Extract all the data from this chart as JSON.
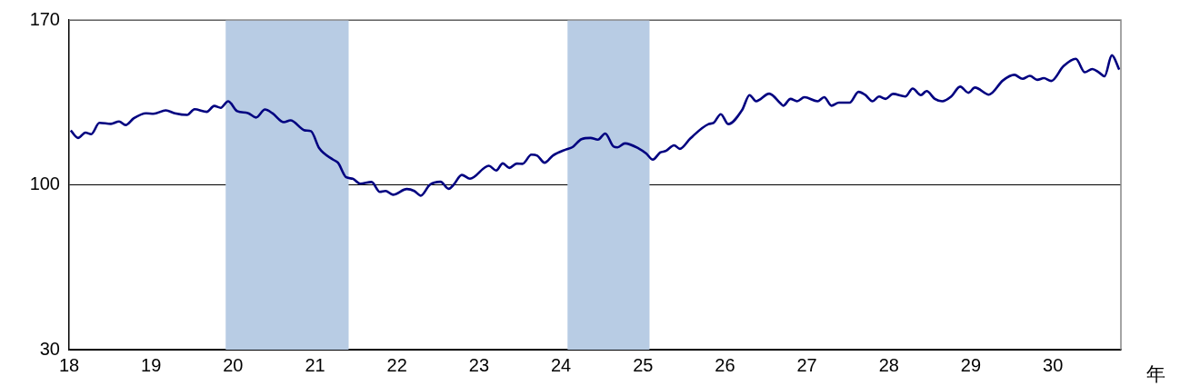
{
  "chart_data": {
    "type": "line",
    "xlabel": "年",
    "x": [
      18.02,
      18.11,
      18.2,
      18.27,
      18.37,
      18.51,
      18.61,
      18.69,
      18.79,
      18.94,
      19.03,
      19.18,
      19.29,
      19.44,
      19.53,
      19.68,
      19.77,
      19.85,
      19.94,
      20.05,
      20.18,
      20.28,
      20.39,
      20.48,
      20.62,
      20.7,
      20.88,
      20.95,
      21.05,
      21.22,
      21.28,
      21.38,
      21.46,
      21.55,
      21.69,
      21.79,
      21.86,
      21.95,
      22.12,
      22.21,
      22.29,
      22.4,
      22.53,
      22.63,
      22.69,
      22.79,
      22.89,
      23.12,
      23.21,
      23.29,
      23.37,
      23.46,
      23.53,
      23.64,
      23.71,
      23.8,
      23.9,
      24.06,
      24.14,
      24.25,
      24.36,
      24.45,
      24.54,
      24.64,
      24.69,
      24.78,
      24.95,
      25.04,
      25.12,
      25.21,
      25.28,
      25.38,
      25.45,
      25.58,
      25.8,
      25.86,
      25.95,
      26.04,
      26.21,
      26.3,
      26.38,
      26.54,
      26.68,
      26.71,
      26.8,
      26.88,
      26.97,
      27.13,
      27.21,
      27.3,
      27.39,
      27.52,
      27.63,
      27.71,
      27.8,
      27.88,
      27.96,
      28.05,
      28.2,
      28.29,
      28.39,
      28.46,
      28.56,
      28.65,
      28.76,
      28.87,
      28.97,
      29.05,
      29.22,
      29.39,
      29.53,
      29.63,
      29.72,
      29.81,
      29.89,
      29.98,
      30.13,
      30.28,
      30.39,
      30.48,
      30.56,
      30.63,
      30.72,
      30.81
    ],
    "series": [
      {
        "color": "#000080",
        "values": [
          123.1,
          119.9,
          122.2,
          121.5,
          126.3,
          125.9,
          126.9,
          125.4,
          128.3,
          130.4,
          130.2,
          131.6,
          130.4,
          129.7,
          132.1,
          131.0,
          133.5,
          132.7,
          135.5,
          131.3,
          130.5,
          128.6,
          132.0,
          130.4,
          126.6,
          127.4,
          123.1,
          122.8,
          115.6,
          110.7,
          109.4,
          103.2,
          102.6,
          100.5,
          101.2,
          97.0,
          97.4,
          95.8,
          98.2,
          97.4,
          95.4,
          100.0,
          101.3,
          98.3,
          100.0,
          104.2,
          102.6,
          108.1,
          106.1,
          109.1,
          107.2,
          109.0,
          108.9,
          112.8,
          112.4,
          109.4,
          112.4,
          115.0,
          116.0,
          119.4,
          119.9,
          119.2,
          121.8,
          116.3,
          115.9,
          117.6,
          115.4,
          113.3,
          110.7,
          113.7,
          114.4,
          116.8,
          115.3,
          119.8,
          125.8,
          126.3,
          130.0,
          125.8,
          131.8,
          138.1,
          135.5,
          138.7,
          134.5,
          133.6,
          136.5,
          135.5,
          137.2,
          135.5,
          137.2,
          133.6,
          134.9,
          134.9,
          139.5,
          138.2,
          135.5,
          137.5,
          136.5,
          138.6,
          137.5,
          140.9,
          138.1,
          139.8,
          136.5,
          135.5,
          137.5,
          141.7,
          139.1,
          141.3,
          138.3,
          144.3,
          146.7,
          145.0,
          146.3,
          144.6,
          145.3,
          144.1,
          150.4,
          153.5,
          147.8,
          149.2,
          147.8,
          146.1,
          155.0,
          148.9
        ]
      }
    ],
    "xlim": [
      18,
      30.83
    ],
    "xticks": [
      18,
      19,
      20,
      21,
      22,
      23,
      24,
      25,
      26,
      27,
      28,
      29,
      30
    ],
    "ylim": [
      30,
      170
    ],
    "yticks": [
      30,
      100,
      170
    ],
    "bands": [
      {
        "axis": "x",
        "from": 19.91,
        "to": 21.41,
        "color": "#b8cce4"
      },
      {
        "axis": "x",
        "from": 24.08,
        "to": 25.08,
        "color": "#b8cce4"
      }
    ],
    "grid": "y",
    "legend": false,
    "marker": "none",
    "line_style": "solid"
  }
}
